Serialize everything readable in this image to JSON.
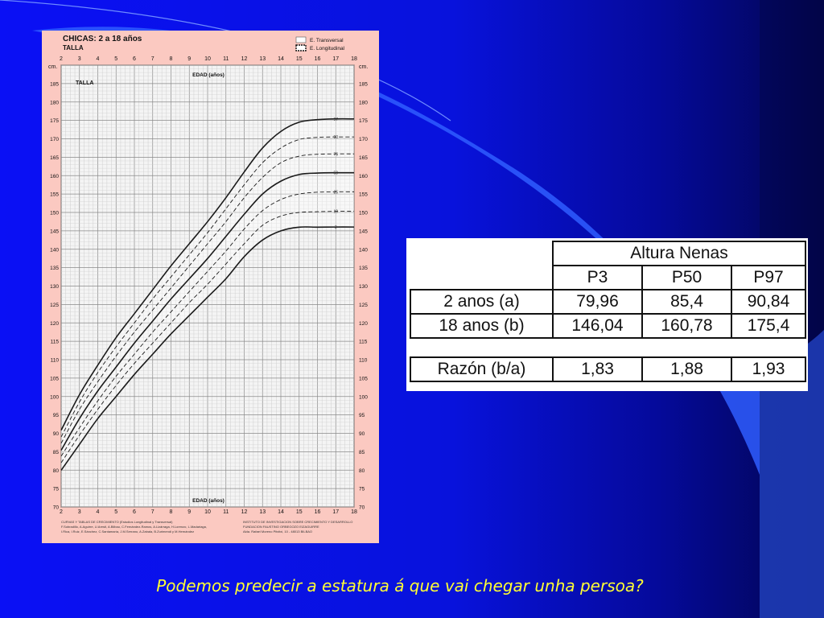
{
  "slide": {
    "caption": "Podemos predecir a estatura á que vai chegar unha persoa?",
    "colors": {
      "background": "#0812dc",
      "caption": "#ffff33",
      "chart_bg": "#fbc9c1"
    }
  },
  "growth_chart": {
    "title": "CHICAS: 2 a 18 años",
    "subtitle": "TALLA",
    "inner_label": "TALLA",
    "unit_label": "cm.",
    "xlabel": "EDAD (años)",
    "legend": {
      "transversal": "E. Transversal",
      "longitudinal": "E. Longitudinal"
    },
    "footer_left": [
      "CURVAS Y TABLAS DE CRECIMIENTO (Estudios Longitudinal y Transversal)",
      "F.Sobradillo, A.Aguirre, U.Aresti, A.Bilbao, C.Fernández-Ramos, A.Lizárraga, H.Lorenzo, L.Madariaga,",
      "I.Rica, I.Ruiz, E.Sánchez, C.Santamaría, J.M.Serrano, A.Zabala, B.Zurimendi y M.Hernández"
    ],
    "footer_right": [
      "INSTITUTO DE INVESTIGACION SOBRE CRECIMIENTO Y DESARROLLO",
      "FUNDACION FAUSTINO ORBEGOZO EIZAGUIRRE",
      "Alda. Rafael Moreno Pitxitxi, 10 - 48013 BILBAO"
    ]
  },
  "chart_data": {
    "type": "line",
    "title": "CHICAS: 2 a 18 años",
    "subtitle": "TALLA",
    "xlabel": "EDAD (años)",
    "ylabel": "cm.",
    "xlim": [
      2,
      18
    ],
    "ylim": [
      70,
      190
    ],
    "x_ticks": [
      2,
      3,
      4,
      5,
      6,
      7,
      8,
      9,
      10,
      11,
      12,
      13,
      14,
      15,
      16,
      17,
      18
    ],
    "y_ticks": [
      70,
      75,
      80,
      85,
      90,
      95,
      100,
      105,
      110,
      115,
      120,
      125,
      130,
      135,
      140,
      145,
      150,
      155,
      160,
      165,
      170,
      175,
      180,
      185
    ],
    "x": [
      2,
      3,
      4,
      5,
      6,
      7,
      8,
      9,
      10,
      11,
      12,
      13,
      14,
      15,
      16,
      17,
      18
    ],
    "series": [
      {
        "name": "P3",
        "style": "solid",
        "values": [
          79.96,
          87.0,
          94.0,
          100.0,
          106.0,
          111.5,
          117.0,
          122.0,
          127.0,
          132.0,
          138.0,
          142.5,
          145.0,
          146.0,
          146.0,
          146.04,
          146.04
        ]
      },
      {
        "name": "P10",
        "style": "dashed",
        "values": [
          82.0,
          89.5,
          96.5,
          103.0,
          109.0,
          114.5,
          120.0,
          125.5,
          130.5,
          136.0,
          141.5,
          146.5,
          149.0,
          150.0,
          150.2,
          150.3,
          150.3
        ]
      },
      {
        "name": "P25",
        "style": "dashed",
        "values": [
          83.8,
          91.5,
          98.8,
          105.5,
          111.5,
          117.5,
          123.0,
          128.5,
          134.0,
          139.5,
          145.5,
          150.5,
          153.5,
          155.0,
          155.5,
          155.6,
          155.6
        ]
      },
      {
        "name": "P50",
        "style": "solid",
        "values": [
          85.4,
          94.0,
          101.5,
          108.0,
          114.5,
          120.5,
          126.5,
          132.0,
          137.5,
          143.5,
          149.5,
          155.0,
          158.5,
          160.3,
          160.7,
          160.78,
          160.78
        ]
      },
      {
        "name": "P75",
        "style": "dashed",
        "values": [
          87.3,
          96.5,
          104.0,
          111.0,
          117.5,
          123.5,
          129.5,
          135.5,
          141.5,
          147.5,
          154.0,
          159.5,
          163.5,
          165.3,
          165.8,
          165.9,
          165.9
        ]
      },
      {
        "name": "P90",
        "style": "dashed",
        "values": [
          89.0,
          98.5,
          106.5,
          113.5,
          120.0,
          126.5,
          132.5,
          138.5,
          144.5,
          151.0,
          157.5,
          163.5,
          167.5,
          169.8,
          170.4,
          170.5,
          170.5
        ]
      },
      {
        "name": "P97",
        "style": "solid",
        "values": [
          90.84,
          100.5,
          108.5,
          116.0,
          122.5,
          129.0,
          135.5,
          141.5,
          147.5,
          154.0,
          161.0,
          167.5,
          172.0,
          174.5,
          175.2,
          175.4,
          175.4
        ]
      }
    ],
    "legend_position": "top-right",
    "grid": true
  },
  "ratio_table": {
    "group_header": "Altura Nenas",
    "columns": [
      "P3",
      "P50",
      "P97"
    ],
    "rows": [
      {
        "label": "2 anos (a)",
        "values": [
          "79,96",
          "85,4",
          "90,84"
        ]
      },
      {
        "label": "18 anos (b)",
        "values": [
          "146,04",
          "160,78",
          "175,4"
        ]
      }
    ],
    "ratio_row": {
      "label": "Razón (b/a)",
      "values": [
        "1,83",
        "1,88",
        "1,93"
      ]
    }
  }
}
